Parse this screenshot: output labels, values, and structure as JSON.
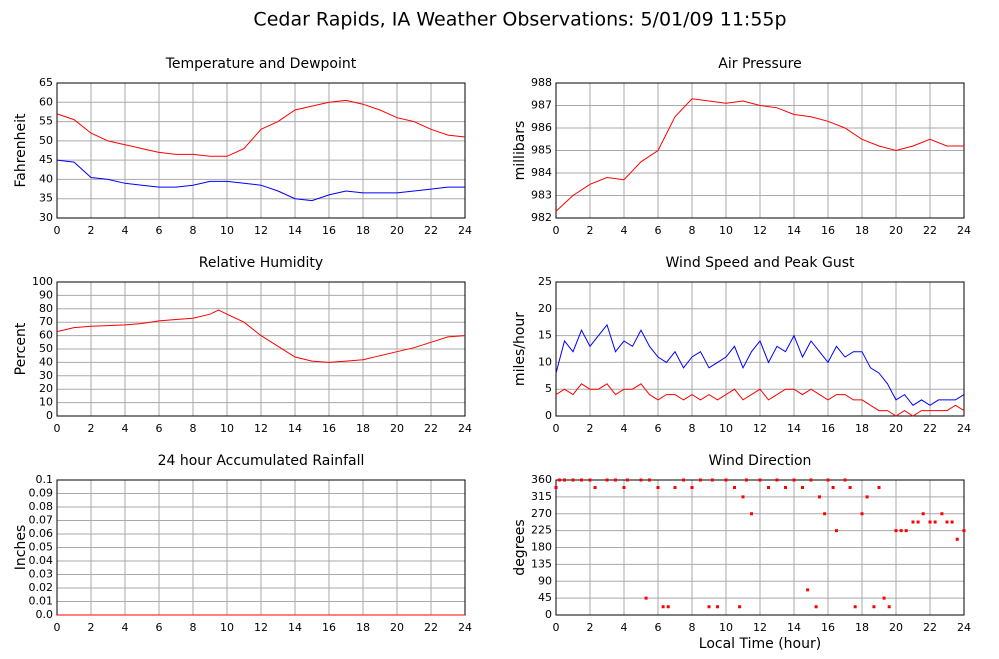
{
  "title": "Cedar Rapids, IA Weather Observations: 5/01/09 11:55p",
  "chart_data": [
    {
      "type": "line",
      "title": "Temperature and Dewpoint",
      "ylabel": "Fahrenheit",
      "x": [
        0,
        1,
        2,
        3,
        4,
        5,
        6,
        7,
        8,
        9,
        10,
        11,
        12,
        13,
        14,
        15,
        16,
        17,
        18,
        19,
        20,
        21,
        22,
        23,
        24
      ],
      "series": [
        {
          "color": "#ff0000",
          "values": [
            57,
            55.5,
            52,
            50,
            49,
            48,
            47,
            46.5,
            46.5,
            46,
            46,
            48,
            53,
            55,
            58,
            59,
            60,
            60.5,
            59.5,
            58,
            56,
            55,
            53,
            51.5,
            51
          ]
        },
        {
          "color": "#0000ff",
          "values": [
            45,
            44.5,
            40.5,
            40,
            39,
            38.5,
            38,
            38,
            38.5,
            39.5,
            39.5,
            39,
            38.5,
            37,
            35,
            34.5,
            36,
            37,
            36.5,
            36.5,
            36.5,
            37,
            37.5,
            38,
            38
          ]
        }
      ],
      "xlim": [
        0,
        24
      ],
      "xticks": [
        0,
        2,
        4,
        6,
        8,
        10,
        12,
        14,
        16,
        18,
        20,
        22,
        24
      ],
      "ylim": [
        30,
        65
      ],
      "yticks": [
        30,
        35,
        40,
        45,
        50,
        55,
        60,
        65
      ],
      "grid": true
    },
    {
      "type": "line",
      "title": "Air Pressure",
      "ylabel": "millibars",
      "x": [
        0,
        1,
        2,
        3,
        4,
        5,
        6,
        7,
        8,
        9,
        10,
        11,
        12,
        13,
        14,
        15,
        16,
        17,
        18,
        19,
        20,
        21,
        22,
        23,
        24
      ],
      "series": [
        {
          "color": "#ff0000",
          "values": [
            982.3,
            983,
            983.5,
            983.8,
            983.7,
            984.5,
            985,
            986.5,
            987.3,
            987.2,
            987.1,
            987.2,
            987,
            986.9,
            986.6,
            986.5,
            986.3,
            986,
            985.5,
            985.2,
            985,
            985.2,
            985.5,
            985.2,
            985.2
          ]
        }
      ],
      "xlim": [
        0,
        24
      ],
      "xticks": [
        0,
        2,
        4,
        6,
        8,
        10,
        12,
        14,
        16,
        18,
        20,
        22,
        24
      ],
      "ylim": [
        982,
        988
      ],
      "yticks": [
        982,
        983,
        984,
        985,
        986,
        987,
        988
      ],
      "grid": true
    },
    {
      "type": "line",
      "title": "Relative Humidity",
      "ylabel": "Percent",
      "x": [
        0,
        1,
        2,
        3,
        4,
        5,
        6,
        7,
        8,
        9,
        9.5,
        10,
        11,
        12,
        13,
        14,
        15,
        16,
        17,
        18,
        19,
        20,
        21,
        22,
        23,
        24
      ],
      "series": [
        {
          "color": "#ff0000",
          "values": [
            63,
            66,
            67,
            67.5,
            68,
            69,
            71,
            72,
            73,
            76,
            79,
            76,
            70,
            60,
            52,
            44,
            41,
            40,
            41,
            42,
            45,
            48,
            51,
            55,
            59,
            60
          ]
        }
      ],
      "xlim": [
        0,
        24
      ],
      "xticks": [
        0,
        2,
        4,
        6,
        8,
        10,
        12,
        14,
        16,
        18,
        20,
        22,
        24
      ],
      "ylim": [
        0,
        100
      ],
      "yticks": [
        0,
        10,
        20,
        30,
        40,
        50,
        60,
        70,
        80,
        90,
        100
      ],
      "grid": true
    },
    {
      "type": "line",
      "title": "Wind Speed and Peak Gust",
      "ylabel": "miles/hour",
      "x": [
        0,
        0.5,
        1,
        1.5,
        2,
        2.5,
        3,
        3.5,
        4,
        4.5,
        5,
        5.5,
        6,
        6.5,
        7,
        7.5,
        8,
        8.5,
        9,
        9.5,
        10,
        10.5,
        11,
        11.5,
        12,
        12.5,
        13,
        13.5,
        14,
        14.5,
        15,
        15.5,
        16,
        16.5,
        17,
        17.5,
        18,
        18.5,
        19,
        19.5,
        20,
        20.5,
        21,
        21.5,
        22,
        22.5,
        23,
        23.5,
        24
      ],
      "series": [
        {
          "color": "#0000ff",
          "values": [
            8,
            14,
            12,
            16,
            13,
            15,
            17,
            12,
            14,
            13,
            16,
            13,
            11,
            10,
            12,
            9,
            11,
            12,
            9,
            10,
            11,
            13,
            9,
            12,
            14,
            10,
            13,
            12,
            15,
            11,
            14,
            12,
            10,
            13,
            11,
            12,
            12,
            9,
            8,
            6,
            3,
            4,
            2,
            3,
            2,
            3,
            3,
            3,
            4
          ]
        },
        {
          "color": "#ff0000",
          "values": [
            4,
            5,
            4,
            6,
            5,
            5,
            6,
            4,
            5,
            5,
            6,
            4,
            3,
            4,
            4,
            3,
            4,
            3,
            4,
            3,
            4,
            5,
            3,
            4,
            5,
            3,
            4,
            5,
            5,
            4,
            5,
            4,
            3,
            4,
            4,
            3,
            3,
            2,
            1,
            1,
            0,
            1,
            0,
            1,
            1,
            1,
            1,
            2,
            1
          ]
        }
      ],
      "xlim": [
        0,
        24
      ],
      "xticks": [
        0,
        2,
        4,
        6,
        8,
        10,
        12,
        14,
        16,
        18,
        20,
        22,
        24
      ],
      "ylim": [
        0,
        25
      ],
      "yticks": [
        0,
        5,
        10,
        15,
        20,
        25
      ],
      "grid": true
    },
    {
      "type": "line",
      "title": "24 hour Accumulated Rainfall",
      "ylabel": "Inches",
      "x": [
        0,
        24
      ],
      "series": [
        {
          "color": "#ff0000",
          "values": [
            0,
            0
          ]
        }
      ],
      "xlim": [
        0,
        24
      ],
      "xticks": [
        0,
        2,
        4,
        6,
        8,
        10,
        12,
        14,
        16,
        18,
        20,
        22,
        24
      ],
      "ylim": [
        0,
        0.1
      ],
      "yticks": [
        {
          "value": 0,
          "label": "0.0"
        },
        0.01,
        0.02,
        0.03,
        0.04,
        0.05,
        0.06,
        0.07,
        0.08,
        0.09,
        0.1
      ],
      "grid": true
    },
    {
      "type": "scatter",
      "title": "Wind Direction",
      "ylabel": "degrees",
      "xlabel": "Local Time (hour)",
      "color": "#ff0000",
      "x": [
        0,
        0.2,
        0.5,
        1,
        1.5,
        2,
        2.3,
        3,
        3.5,
        4,
        4.2,
        5,
        5.3,
        5.5,
        6,
        6.3,
        6.6,
        7,
        7.5,
        8,
        8.5,
        9,
        9.2,
        9.5,
        10,
        10.5,
        10.8,
        11,
        11.2,
        11.5,
        12,
        12.5,
        13,
        13.5,
        14,
        14.5,
        14.8,
        15,
        15.3,
        15.5,
        15.8,
        16,
        16.3,
        16.5,
        17,
        17.3,
        17.6,
        18,
        18.3,
        18.7,
        19,
        19.3,
        19.6,
        20,
        20.3,
        20.6,
        21,
        21.3,
        21.6,
        22,
        22.3,
        22.7,
        23,
        23.3,
        23.6,
        24
      ],
      "y": [
        340,
        360,
        360,
        360,
        360,
        360,
        340,
        360,
        360,
        340,
        360,
        360,
        45,
        360,
        340,
        22,
        22,
        340,
        360,
        340,
        360,
        22,
        360,
        22,
        360,
        340,
        22,
        315,
        360,
        270,
        360,
        340,
        360,
        340,
        360,
        340,
        67,
        360,
        22,
        315,
        270,
        360,
        340,
        225,
        360,
        340,
        22,
        270,
        315,
        22,
        340,
        45,
        22,
        225,
        225,
        225,
        248,
        248,
        270,
        248,
        248,
        270,
        248,
        248,
        202,
        225
      ],
      "xlim": [
        0,
        24
      ],
      "xticks": [
        0,
        2,
        4,
        6,
        8,
        10,
        12,
        14,
        16,
        18,
        20,
        22,
        24
      ],
      "ylim": [
        0,
        360
      ],
      "yticks": [
        0,
        45,
        90,
        135,
        180,
        225,
        270,
        315,
        360
      ],
      "grid": true
    }
  ]
}
